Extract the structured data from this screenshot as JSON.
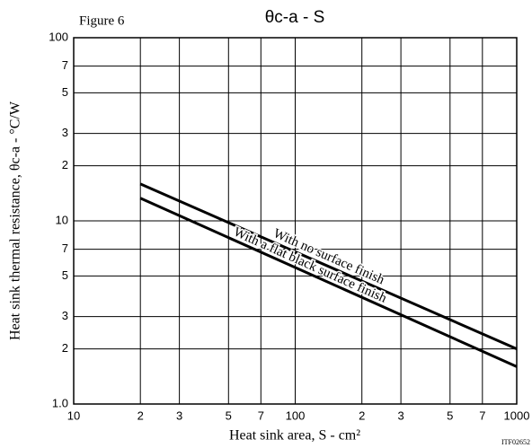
{
  "chart_data": {
    "type": "line",
    "title": "θc-a - S",
    "figure_label": "Figure 6",
    "xlabel": "Heat sink area, S - cm²",
    "ylabel": "Heat sink thermal resistance, θc-a - °C/W",
    "code": "ITF02652",
    "x": [
      20,
      1000
    ],
    "series": [
      {
        "name": "With no surface finish",
        "color": "#000000",
        "values": [
          15.9,
          2.0
        ]
      },
      {
        "name": "With a flat black surface finish",
        "color": "#000000",
        "values": [
          13.3,
          1.6
        ]
      }
    ],
    "xscale": "log",
    "yscale": "log",
    "xlim": [
      10,
      1000
    ],
    "ylim": [
      1,
      100
    ],
    "xticks": [
      10,
      {
        "value": 20,
        "label": "2"
      },
      {
        "value": 30,
        "label": "3"
      },
      {
        "value": 50,
        "label": "5"
      },
      {
        "value": 70,
        "label": "7"
      },
      100,
      {
        "value": 200,
        "label": "2"
      },
      {
        "value": 300,
        "label": "3"
      },
      {
        "value": 500,
        "label": "5"
      },
      {
        "value": 700,
        "label": "7"
      },
      1000
    ],
    "yticks": [
      {
        "value": 1,
        "label": "1.0"
      },
      {
        "value": 2,
        "label": "2"
      },
      {
        "value": 3,
        "label": "3"
      },
      {
        "value": 5,
        "label": "5"
      },
      {
        "value": 7,
        "label": "7"
      },
      10,
      {
        "value": 20,
        "label": "2"
      },
      {
        "value": 30,
        "label": "3"
      },
      {
        "value": 50,
        "label": "5"
      },
      {
        "value": 70,
        "label": "7"
      },
      100
    ],
    "grid": true
  }
}
